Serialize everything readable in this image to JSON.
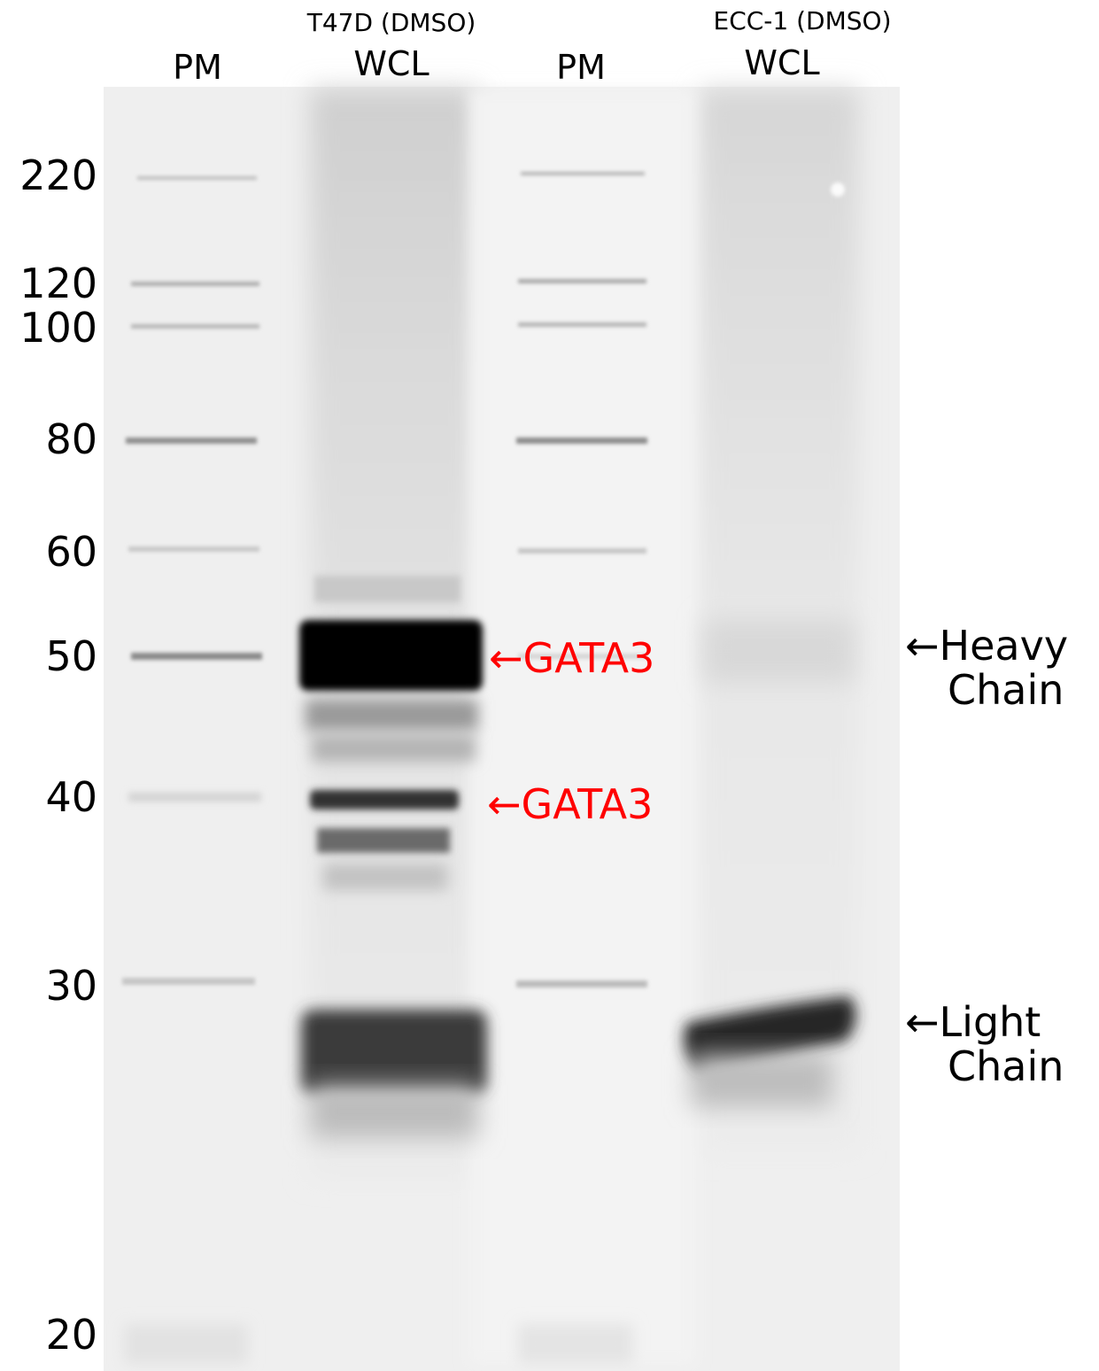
{
  "lanes": {
    "lane1": {
      "label": "PM"
    },
    "lane2": {
      "top": "T47D (DMSO)",
      "label": "WCL"
    },
    "lane3": {
      "label": "PM"
    },
    "lane4": {
      "top": "ECC-1 (DMSO)",
      "label": "WCL"
    }
  },
  "markers": [
    "220",
    "120",
    "100",
    "80",
    "60",
    "50",
    "40",
    "30",
    "20"
  ],
  "annotations": {
    "gata3_upper": "←GATA3",
    "gata3_lower": "←GATA3",
    "heavy_chain_line1": "←Heavy",
    "heavy_chain_line2": "Chain",
    "light_chain_line1": "←Light",
    "light_chain_line2": "Chain"
  },
  "colors": {
    "membrane": "#efefef",
    "annotation_red": "#ff0000",
    "text": "#000000"
  }
}
